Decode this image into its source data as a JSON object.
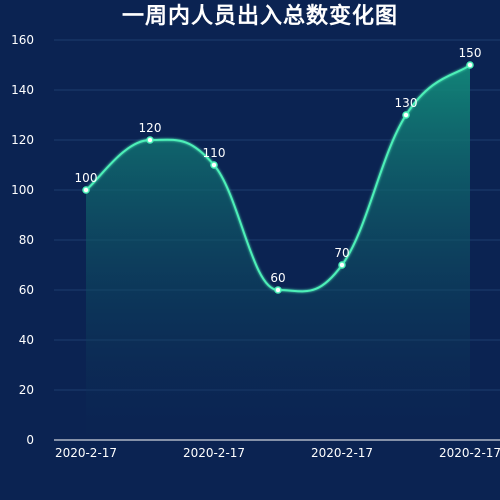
{
  "chart_data": {
    "type": "area",
    "title": "一周内人员出入总数变化图",
    "xlabel": "",
    "ylabel": "",
    "categories": [
      "2020-2-17",
      "2020-2-17",
      "2020-2-17",
      "2020-2-17",
      "2020-2-17",
      "2020-2-17",
      "2020-2-17"
    ],
    "x_tick_labels_shown": [
      "2020-2-17",
      "2020-2-17",
      "2020-2-17",
      "2020-2-17"
    ],
    "values": [
      100,
      120,
      110,
      60,
      70,
      130,
      150
    ],
    "data_labels": [
      "100",
      "120",
      "110",
      "60",
      "70",
      "130",
      "150"
    ],
    "ylim": [
      0,
      160
    ],
    "y_ticks": [
      0,
      20,
      40,
      60,
      80,
      100,
      120,
      140,
      160
    ],
    "smooth": true,
    "grid": "horizontal",
    "legend": "none",
    "colors": {
      "background": "#0b2352",
      "line": "#4ef0b8",
      "area_top": "#12897a",
      "area_bottom": "#0b2352",
      "grid": "#1e3d6e",
      "axis": "#ffffff",
      "text": "#ffffff"
    }
  }
}
